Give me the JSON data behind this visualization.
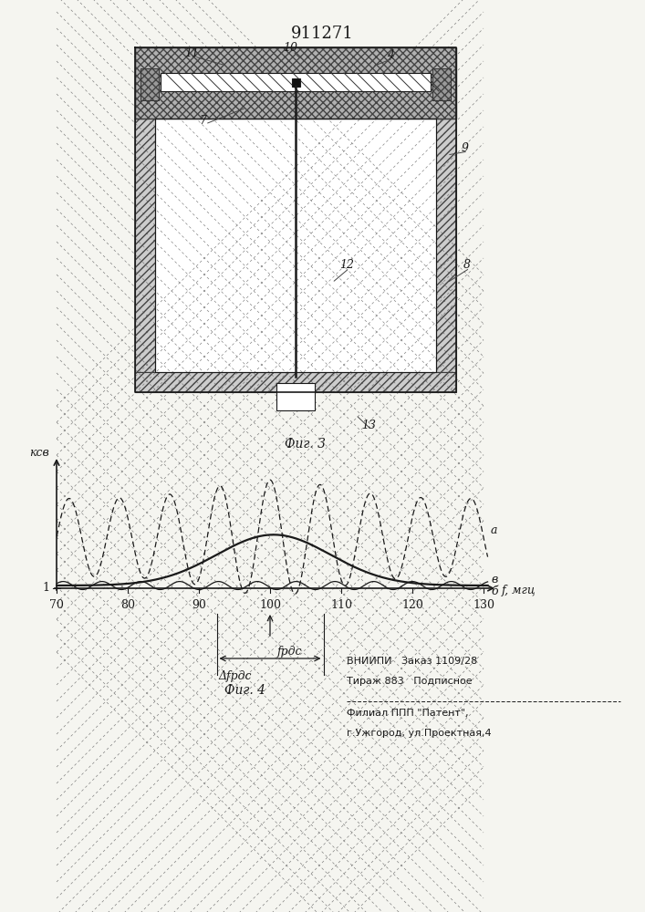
{
  "title": "911271",
  "fig3_label": "Фиг. 3",
  "fig4_label": "Фиг. 4",
  "ksv_label": "ксв",
  "freq_label": "f, мгц",
  "freq_ticks": [
    70,
    80,
    90,
    100,
    110,
    120,
    130
  ],
  "freq_min": 70,
  "freq_max": 130,
  "curve_a_label": "а",
  "curve_v_label": "в",
  "curve_b_label": "б",
  "frds_label": "fрдс",
  "delta_frds_label": "Δfрдс",
  "vniiipi_line1": "ВНИИПИ   Заказ 1109/28",
  "vniiipi_line2": "Тираж 883   Подписное",
  "filial_line1": "Филиал ППП \"Патент\",",
  "filial_line2": "г.Ужгород, ул.Проектная,4",
  "bg_color": "#f5f5f0"
}
